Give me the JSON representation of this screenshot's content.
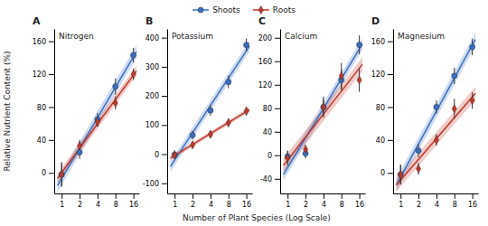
{
  "chart_data": [
    {
      "type": "scatter",
      "title": "Nitrogen",
      "annotations": [
        "A"
      ],
      "xlabel": "Number of Plant Species (Log Scale)",
      "ylabel": "Relative Nutrient Content (%)",
      "legend": "top",
      "log": "x",
      "grid": false,
      "x": [
        1,
        2,
        4,
        8,
        16
      ],
      "xlim": [
        0.75,
        20
      ],
      "xticks": [
        1,
        2,
        4,
        8,
        16
      ],
      "ylim": [
        -25,
        175
      ],
      "yticks": [
        0,
        40,
        80,
        120,
        160
      ],
      "series": [
        {
          "name": "Shoots",
          "type": "scatter",
          "color": "#3B6FBF",
          "marker": "circle",
          "values": [
            -2,
            25,
            65,
            105,
            143
          ],
          "errors": [
            14,
            8,
            8,
            10,
            9
          ]
        },
        {
          "name": "Roots",
          "type": "scatter",
          "color": "#C0392B",
          "marker": "diamond",
          "values": [
            -2,
            33,
            62,
            85,
            120
          ],
          "errors": [
            15,
            7,
            6,
            8,
            7
          ]
        },
        {
          "type": "line",
          "color": "#3B6FBF",
          "x": [
            0.85,
            18
          ],
          "values": [
            -15.48,
            147.49
          ],
          "ci_width": 8
        },
        {
          "type": "line",
          "color": "#C0392B",
          "x": [
            0.85,
            18
          ],
          "values": [
            -6.54,
            123.83
          ],
          "ci_width": 6
        }
      ]
    },
    {
      "type": "scatter",
      "title": "Potassium",
      "annotations": [
        "B"
      ],
      "log": "x",
      "grid": false,
      "x": [
        1,
        2,
        4,
        8,
        16
      ],
      "xlim": [
        0.75,
        20
      ],
      "xticks": [
        1,
        2,
        4,
        8,
        16
      ],
      "ylim": [
        -135,
        430
      ],
      "yticks": [
        -100,
        0,
        100,
        200,
        300,
        400
      ],
      "series": [
        {
          "type": "scatter",
          "color": "#3B6FBF",
          "marker": "circle",
          "values": [
            -2,
            65,
            150,
            248,
            375
          ],
          "errors": [
            15,
            15,
            18,
            22,
            22
          ]
        },
        {
          "type": "scatter",
          "color": "#C0392B",
          "marker": "diamond",
          "values": [
            -3,
            32,
            68,
            108,
            148
          ],
          "errors": [
            12,
            12,
            12,
            15,
            15
          ]
        },
        {
          "type": "line",
          "color": "#3B6FBF",
          "x": [
            0.85,
            18
          ],
          "values": [
            -42.17,
            370.52
          ],
          "ci_width": 18
        },
        {
          "type": "line",
          "color": "#C0392B",
          "x": [
            0.85,
            18
          ],
          "values": [
            -13.86,
            152.62
          ],
          "ci_width": 8
        }
      ]
    },
    {
      "type": "scatter",
      "title": "Calcium",
      "annotations": [
        "C"
      ],
      "log": "x",
      "grid": false,
      "x": [
        1,
        2,
        4,
        8,
        16
      ],
      "xlim": [
        0.75,
        20
      ],
      "xticks": [
        1,
        2,
        4,
        8,
        16
      ],
      "ylim": [
        -65,
        215
      ],
      "yticks": [
        -40,
        0,
        40,
        80,
        120,
        160,
        200
      ],
      "series": [
        {
          "type": "scatter",
          "color": "#3B6FBF",
          "marker": "circle",
          "values": [
            -2,
            3,
            82,
            128,
            188
          ],
          "errors": [
            10,
            8,
            15,
            18,
            16
          ]
        },
        {
          "type": "scatter",
          "color": "#C0392B",
          "marker": "diamond",
          "values": [
            -5,
            10,
            82,
            135,
            128
          ],
          "errors": [
            12,
            8,
            18,
            22,
            20
          ]
        },
        {
          "type": "line",
          "color": "#3B6FBF",
          "x": [
            0.85,
            18
          ],
          "values": [
            -33.04,
            189.38
          ],
          "ci_width": 10
        },
        {
          "type": "line",
          "color": "#C0392B",
          "x": [
            0.85,
            18
          ],
          "values": [
            -17.37,
            154.84
          ],
          "ci_width": 12
        }
      ]
    },
    {
      "type": "scatter",
      "title": "Magnesium",
      "annotations": [
        "D"
      ],
      "log": "x",
      "grid": false,
      "x": [
        1,
        2,
        4,
        8,
        16
      ],
      "xlim": [
        0.75,
        20
      ],
      "xticks": [
        1,
        2,
        4,
        8,
        16
      ],
      "ylim": [
        -25,
        175
      ],
      "yticks": [
        0,
        40,
        80,
        120,
        160
      ],
      "series": [
        {
          "type": "scatter",
          "color": "#3B6FBF",
          "marker": "circle",
          "values": [
            -2,
            27,
            80,
            118,
            153
          ],
          "errors": [
            12,
            8,
            8,
            10,
            10
          ]
        },
        {
          "type": "scatter",
          "color": "#C0392B",
          "marker": "diamond",
          "values": [
            -2,
            5,
            40,
            78,
            88
          ],
          "errors": [
            12,
            7,
            7,
            12,
            10
          ]
        },
        {
          "type": "line",
          "color": "#3B6FBF",
          "x": [
            0.85,
            18
          ],
          "values": [
            -14.4,
            162.21
          ],
          "ci_width": 8
        },
        {
          "type": "line",
          "color": "#C0392B",
          "x": [
            0.85,
            18
          ],
          "values": [
            -14.73,
            96.7
          ],
          "ci_width": 8
        }
      ]
    }
  ]
}
